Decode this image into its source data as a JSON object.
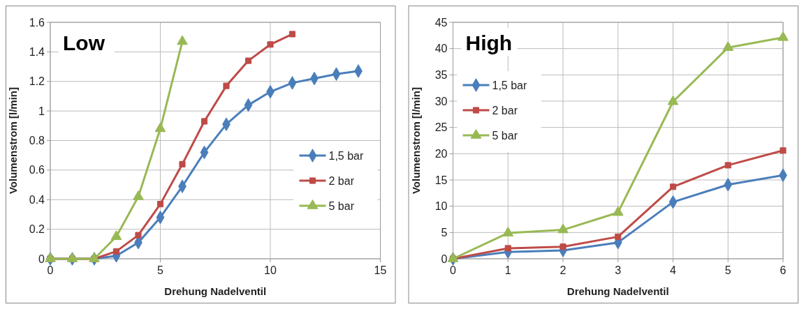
{
  "chart_data": [
    {
      "type": "line",
      "title": "Low",
      "xlabel": "Drehung Nadelventil",
      "ylabel": "Volumenstrom [l/min]",
      "xlim": [
        0,
        15
      ],
      "xticks": [
        0,
        5,
        10,
        15
      ],
      "ylim": [
        0,
        1.6
      ],
      "yticks": [
        0,
        0.2,
        0.4,
        0.6,
        0.8,
        1,
        1.2,
        1.4,
        1.6
      ],
      "grid": true,
      "legend": "bottom right",
      "line_style": "solid",
      "series": [
        {
          "name": "1,5 bar",
          "color": "#4a7ebb",
          "marker": "diamond",
          "x": [
            0,
            1,
            2,
            3,
            4,
            5,
            6,
            7,
            8,
            9,
            10,
            11,
            12,
            13,
            14
          ],
          "values": [
            0,
            0,
            0,
            0.02,
            0.11,
            0.28,
            0.49,
            0.72,
            0.91,
            1.04,
            1.13,
            1.19,
            1.22,
            1.25,
            1.27
          ]
        },
        {
          "name": "2 bar",
          "color": "#be4b48",
          "marker": "square",
          "x": [
            0,
            1,
            2,
            3,
            4,
            5,
            6,
            7,
            8,
            9,
            10,
            11
          ],
          "values": [
            0,
            0,
            0,
            0.05,
            0.16,
            0.37,
            0.64,
            0.93,
            1.17,
            1.34,
            1.45,
            1.52
          ]
        },
        {
          "name": "5 bar",
          "color": "#98b954",
          "marker": "triangle",
          "x": [
            0,
            1,
            2,
            3,
            4,
            5,
            6
          ],
          "values": [
            0,
            0,
            0,
            0.15,
            0.42,
            0.88,
            1.47
          ]
        }
      ]
    },
    {
      "type": "line",
      "title": "High",
      "xlabel": "Drehung Nadelventil",
      "ylabel": "Volumenstrom [l/min]",
      "x": [
        0,
        1,
        2,
        3,
        4,
        5,
        6
      ],
      "xlim": [
        0,
        6
      ],
      "xticks": [
        0,
        1,
        2,
        3,
        4,
        5,
        6
      ],
      "ylim": [
        0,
        45
      ],
      "yticks": [
        0,
        5,
        10,
        15,
        20,
        25,
        30,
        35,
        40,
        45
      ],
      "grid": true,
      "legend": "top left",
      "line_style": "solid",
      "series": [
        {
          "name": "1,5 bar",
          "color": "#4a7ebb",
          "marker": "diamond",
          "values": [
            0,
            1.3,
            1.6,
            3.1,
            10.8,
            14.1,
            15.9
          ]
        },
        {
          "name": "2 bar",
          "color": "#be4b48",
          "marker": "square",
          "values": [
            0,
            2,
            2.3,
            4.2,
            13.7,
            17.8,
            20.6
          ]
        },
        {
          "name": "5 bar",
          "color": "#98b954",
          "marker": "triangle",
          "values": [
            0,
            4.9,
            5.5,
            8.8,
            29.9,
            40.2,
            42.1
          ]
        }
      ]
    }
  ]
}
